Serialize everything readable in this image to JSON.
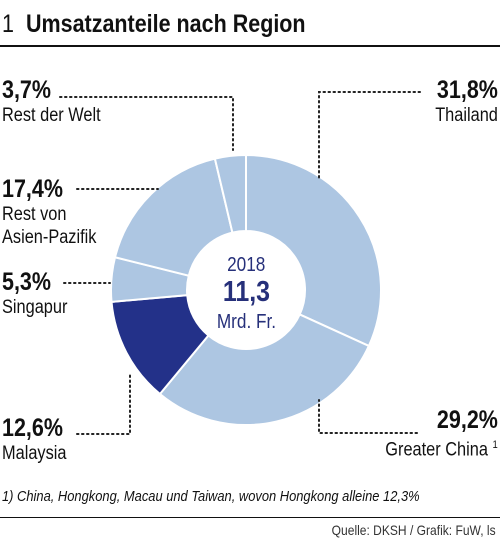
{
  "header": {
    "number": "1",
    "title": "Umsatzanteile nach Region"
  },
  "center": {
    "year": "2018",
    "value": "11,3",
    "unit": "Mrd. Fr."
  },
  "footnote": "1) China, Hongkong, Macau und Taiwan, wovon Hongkong alleine 12,3%",
  "source": "Quelle: DKSH / Grafik: FuW, ls",
  "colors": {
    "light": "#adc6e2",
    "dark": "#233189",
    "center_text": "#26307a"
  },
  "chart_data": {
    "type": "pie",
    "style": "donut",
    "title": "Umsatzanteile nach Region",
    "unit": "%",
    "slices": [
      {
        "label": "Thailand",
        "value": 31.8,
        "value_label": "31,8%",
        "color": "#adc6e2"
      },
      {
        "label": "Greater China",
        "footnote_mark": "1",
        "value": 29.2,
        "value_label": "29,2%",
        "color": "#adc6e2"
      },
      {
        "label": "Malaysia",
        "value": 12.6,
        "value_label": "12,6%",
        "color": "#233189"
      },
      {
        "label": "Singapur",
        "value": 5.3,
        "value_label": "5,3%",
        "color": "#adc6e2"
      },
      {
        "label": "Rest von Asien-Pazifik",
        "label_lines": [
          "Rest von",
          "Asien-Pazifik"
        ],
        "value": 17.4,
        "value_label": "17,4%",
        "color": "#adc6e2"
      },
      {
        "label": "Rest der Welt",
        "value": 3.7,
        "value_label": "3,7%",
        "color": "#adc6e2"
      }
    ]
  }
}
